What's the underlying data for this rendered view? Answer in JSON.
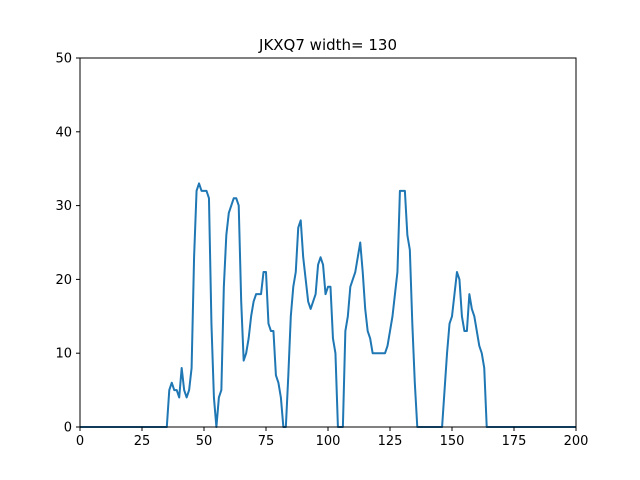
{
  "chart_data": {
    "type": "line",
    "title": "JKXQ7 width= 130",
    "xlabel": "",
    "ylabel": "",
    "xlim": [
      0,
      200
    ],
    "ylim": [
      0,
      50
    ],
    "x_ticks": [
      0,
      25,
      50,
      75,
      100,
      125,
      150,
      175,
      200
    ],
    "y_ticks": [
      0,
      10,
      20,
      30,
      40,
      50
    ],
    "grid": false,
    "line_color": "#1f77b4",
    "series": [
      {
        "x": [
          0,
          35,
          36,
          37,
          38,
          39,
          40,
          41,
          42,
          43,
          44,
          45,
          46,
          47,
          48,
          49,
          50,
          51,
          52,
          53,
          54,
          55,
          56,
          57,
          58,
          59,
          60,
          61,
          62,
          63,
          64,
          65,
          66,
          67,
          68,
          69,
          70,
          71,
          72,
          73,
          74,
          75,
          76,
          77,
          78,
          79,
          80,
          81,
          82,
          83,
          84,
          85,
          86,
          87,
          88,
          89,
          90,
          91,
          92,
          93,
          94,
          95,
          96,
          97,
          98,
          99,
          100,
          101,
          102,
          103,
          104,
          105,
          106,
          107,
          108,
          109,
          110,
          111,
          112,
          113,
          114,
          115,
          116,
          117,
          118,
          119,
          120,
          121,
          122,
          123,
          124,
          125,
          126,
          127,
          128,
          129,
          130,
          131,
          132,
          133,
          134,
          135,
          136,
          137,
          138,
          139,
          140,
          141,
          142,
          143,
          144,
          145,
          146,
          147,
          148,
          149,
          150,
          151,
          152,
          153,
          154,
          155,
          156,
          157,
          158,
          159,
          160,
          161,
          162,
          163,
          164,
          165,
          166,
          200
        ],
        "y": [
          0,
          0,
          5,
          6,
          5,
          5,
          4,
          8,
          5,
          4,
          5,
          8,
          23,
          32,
          33,
          32,
          32,
          32,
          31,
          14,
          4,
          0,
          4,
          5,
          19,
          26,
          29,
          30,
          31,
          31,
          30,
          17,
          9,
          10,
          12,
          15,
          17,
          18,
          18,
          18,
          21,
          21,
          14,
          13,
          13,
          7,
          6,
          4,
          0,
          0,
          7,
          15,
          19,
          21,
          27,
          28,
          23,
          20,
          17,
          16,
          17,
          18,
          22,
          23,
          22,
          18,
          19,
          19,
          12,
          10,
          0,
          0,
          0,
          13,
          15,
          19,
          20,
          21,
          23,
          25,
          21,
          16,
          13,
          12,
          10,
          10,
          10,
          10,
          10,
          10,
          11,
          13,
          15,
          18,
          21,
          32,
          32,
          32,
          26,
          24,
          14,
          6,
          0,
          0,
          0,
          0,
          0,
          0,
          0,
          0,
          0,
          0,
          0,
          5,
          10,
          14,
          15,
          18,
          21,
          20,
          15,
          13,
          13,
          18,
          16,
          15,
          13,
          11,
          10,
          8,
          0,
          0,
          0,
          0
        ]
      }
    ]
  }
}
